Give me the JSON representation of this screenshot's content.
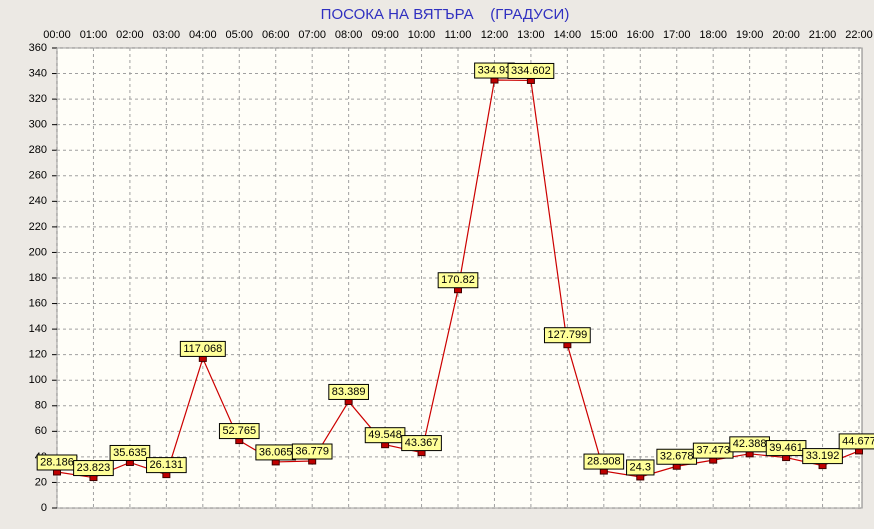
{
  "chart_data": {
    "type": "line",
    "title": "ПОСОКА НА ВЯТЪРА    (ГРАДУСИ)",
    "categories": [
      "00:00",
      "01:00",
      "02:00",
      "03:00",
      "04:00",
      "05:00",
      "06:00",
      "07:00",
      "08:00",
      "09:00",
      "10:00",
      "11:00",
      "12:00",
      "13:00",
      "14:00",
      "15:00",
      "16:00",
      "17:00",
      "18:00",
      "19:00",
      "20:00",
      "21:00",
      "22:00"
    ],
    "values": [
      28.186,
      23.823,
      35.635,
      26.131,
      117.068,
      52.765,
      36.065,
      36.779,
      83.389,
      49.548,
      43.367,
      170.82,
      334.93,
      334.602,
      127.799,
      28.908,
      24.3,
      32.678,
      37.473,
      42.388,
      39.461,
      33.192,
      44.677
    ],
    "color": "#cc0000",
    "ylim": [
      0,
      360
    ],
    "yticks": [
      0,
      20,
      40,
      60,
      80,
      100,
      120,
      140,
      160,
      180,
      200,
      220,
      240,
      260,
      280,
      300,
      320,
      340,
      360
    ],
    "grid": true
  }
}
